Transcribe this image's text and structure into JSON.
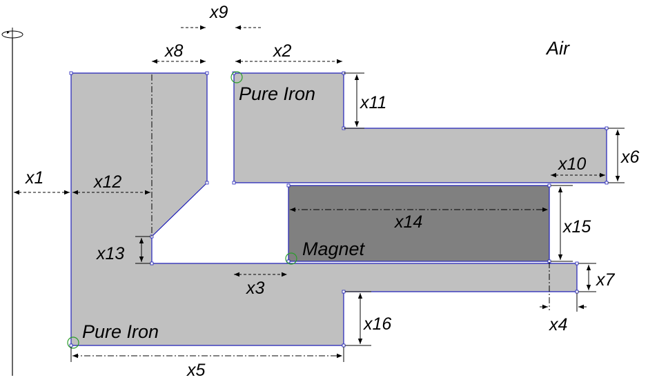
{
  "region_labels": {
    "air": "Air",
    "upper_iron": "Pure Iron",
    "lower_iron": "Pure Iron",
    "magnet": "Magnet"
  },
  "dimensions": {
    "x1": "x1",
    "x2": "x2",
    "x3": "x3",
    "x4": "x4",
    "x5": "x5",
    "x6": "x6",
    "x7": "x7",
    "x8": "x8",
    "x9": "x9",
    "x10": "x10",
    "x11": "x11",
    "x12": "x12",
    "x13": "x13",
    "x14": "x14",
    "x15": "x15",
    "x16": "x16"
  },
  "colors": {
    "iron": "#c0c0c0",
    "magnet": "#808080",
    "outline": "#1f1fb8",
    "dim_line": "#000000",
    "marker": "#2a9d2a"
  }
}
